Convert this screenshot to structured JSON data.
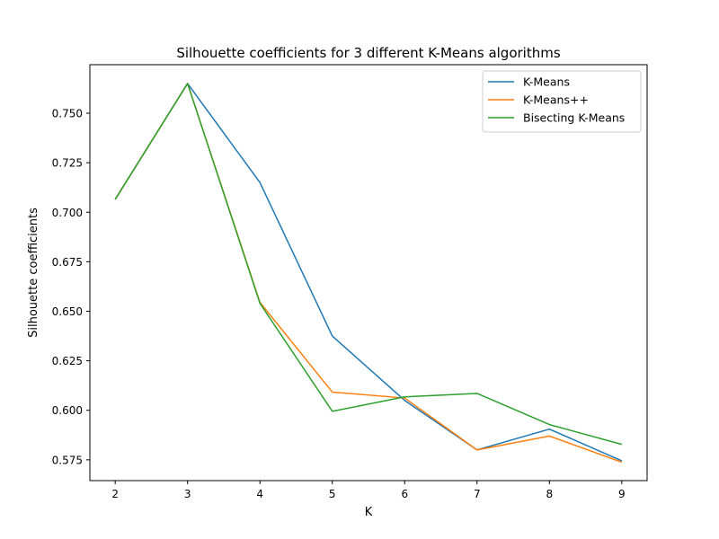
{
  "chart_data": {
    "type": "line",
    "title": "Silhouette coefficients for 3 different K-Means algorithms",
    "xlabel": "K",
    "ylabel": "Silhouette coefficients",
    "x": [
      2,
      3,
      4,
      5,
      6,
      7,
      8,
      9
    ],
    "xlim": [
      1.65,
      9.35
    ],
    "ylim": [
      0.5645,
      0.7745
    ],
    "xticks": [
      2,
      3,
      4,
      5,
      6,
      7,
      8,
      9
    ],
    "xtick_labels": [
      "2",
      "3",
      "4",
      "5",
      "6",
      "7",
      "8",
      "9"
    ],
    "yticks": [
      0.575,
      0.6,
      0.625,
      0.65,
      0.675,
      0.7,
      0.725,
      0.75
    ],
    "ytick_labels": [
      "0.575",
      "0.600",
      "0.625",
      "0.650",
      "0.675",
      "0.700",
      "0.725",
      "0.750"
    ],
    "grid": false,
    "legend_position": "top-right",
    "series": [
      {
        "name": "K-Means",
        "color": "#1f77b4",
        "values": [
          0.7065,
          0.765,
          0.715,
          0.6375,
          0.605,
          0.58,
          0.5905,
          0.5745
        ]
      },
      {
        "name": "K-Means++",
        "color": "#ff7f0e",
        "values": [
          0.7065,
          0.765,
          0.6545,
          0.6092,
          0.6062,
          0.58,
          0.587,
          0.5738
        ]
      },
      {
        "name": "Bisecting K-Means",
        "color": "#2ca02c",
        "values": [
          0.7065,
          0.765,
          0.654,
          0.5995,
          0.6068,
          0.6085,
          0.5928,
          0.5828
        ]
      }
    ]
  }
}
